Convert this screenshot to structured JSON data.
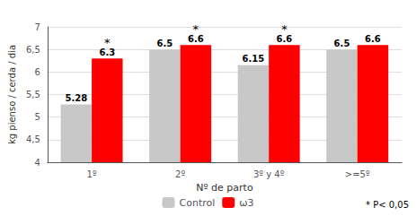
{
  "chart_data": {
    "type": "bar",
    "categories": [
      "1º",
      "2º",
      "3º y 4º",
      ">=5º"
    ],
    "series": [
      {
        "name": "Control",
        "color": "#c8c8c8",
        "values": [
          5.28,
          6.5,
          6.15,
          6.5
        ]
      },
      {
        "name": "ω3",
        "color": "#ff0000",
        "values": [
          6.3,
          6.6,
          6.6,
          6.6
        ]
      }
    ],
    "xlabel": "Nº de parto",
    "ylabel": "kg pienso / cerda / dia",
    "ylim": [
      4,
      7
    ],
    "yticks": [
      4,
      {
        "value": 4.5,
        "label": "4,5"
      },
      5,
      {
        "value": 5.5,
        "label": "5,5"
      },
      6,
      {
        "value": 6.5,
        "label": "6,5"
      },
      7
    ],
    "grid": true,
    "legend": "bottom",
    "data_labels": true,
    "annotations": [
      {
        "text": "*",
        "category": "1º"
      },
      {
        "text": "*",
        "category": "2º"
      },
      {
        "text": "*",
        "category": "3º y 4º"
      },
      {
        "text": "* P< 0,05"
      }
    ]
  }
}
